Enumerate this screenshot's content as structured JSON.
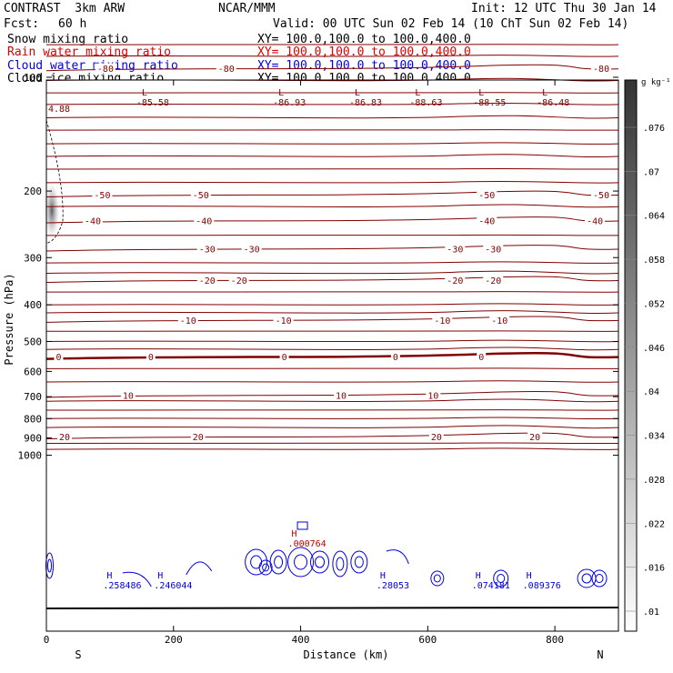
{
  "header": {
    "model": "CONTRAST  3km ARW",
    "center": "NCAR/MMM",
    "init": "Init: 12 UTC Thu 30 Jan 14",
    "fcst_label": "Fcst:",
    "fcst_value": "60 h",
    "valid": "Valid: 00 UTC Sun 02 Feb 14 (10 ChT Sun 02 Feb 14)"
  },
  "fields": [
    {
      "name": "Snow mixing ratio",
      "xy": "XY= 100.0,100.0 to 100.0,400.0",
      "color": "#000000"
    },
    {
      "name": "Rain water mixing ratio",
      "xy": "XY= 100.0,100.0 to 100.0,400.0",
      "color": "#e00000"
    },
    {
      "name": "Cloud water mixing ratio",
      "xy": "XY= 100.0,100.0 to 100.0,400.0",
      "color": "#0000e0"
    },
    {
      "name": "Cloud ice mixing ratio",
      "xy": "XY= 100.0,100.0 to 100.0,400.0",
      "color": "#000000"
    }
  ],
  "colorbar": {
    "unit": "g kg⁻¹",
    "labels": [
      ".076",
      ".07",
      ".064",
      ".058",
      ".052",
      ".046",
      ".04",
      ".034",
      ".028",
      ".022",
      ".016",
      ".01"
    ]
  },
  "chart_data": {
    "type": "contour",
    "xlabel": "Distance (km)",
    "ylabel": "Pressure (hPa)",
    "xlim": [
      0,
      900
    ],
    "ylim": [
      1050,
      50
    ],
    "y_scale": "log",
    "xticks": [
      "0",
      "200",
      "400",
      "600",
      "800"
    ],
    "yticks": [
      "100",
      "200",
      "300",
      "400",
      "500",
      "600",
      "700",
      "800",
      "900",
      "1000"
    ],
    "x_end_labels": {
      "left": "S",
      "right": "N"
    },
    "temperature_contours": [
      {
        "level": -80,
        "p": 95,
        "labels": [
          {
            "x": 80,
            "text": "-80"
          },
          {
            "x": 270,
            "text": "-80"
          },
          {
            "x": 860,
            "text": "-80"
          }
        ]
      },
      {
        "level": -50,
        "p": 205,
        "labels": [
          {
            "x": 75,
            "text": "-50"
          },
          {
            "x": 230,
            "text": "-50"
          },
          {
            "x": 680,
            "text": "-50"
          },
          {
            "x": 860,
            "text": "-50"
          }
        ]
      },
      {
        "level": -40,
        "p": 240,
        "labels": [
          {
            "x": 60,
            "text": "-40"
          },
          {
            "x": 235,
            "text": "-40"
          },
          {
            "x": 680,
            "text": "-40"
          },
          {
            "x": 850,
            "text": "-40"
          }
        ]
      },
      {
        "level": -30,
        "p": 285,
        "labels": [
          {
            "x": 240,
            "text": "-30"
          },
          {
            "x": 310,
            "text": "-30"
          },
          {
            "x": 630,
            "text": "-30"
          },
          {
            "x": 690,
            "text": "-30"
          }
        ]
      },
      {
        "level": -20,
        "p": 345,
        "labels": [
          {
            "x": 240,
            "text": "-20"
          },
          {
            "x": 290,
            "text": "-20"
          },
          {
            "x": 630,
            "text": "-20"
          },
          {
            "x": 690,
            "text": "-20"
          }
        ]
      },
      {
        "level": -10,
        "p": 440,
        "labels": [
          {
            "x": 210,
            "text": "-10"
          },
          {
            "x": 360,
            "text": "-10"
          },
          {
            "x": 610,
            "text": "-10"
          },
          {
            "x": 700,
            "text": "-10"
          }
        ]
      },
      {
        "level": 0,
        "p": 550,
        "bold": true,
        "labels": [
          {
            "x": 15,
            "text": "0"
          },
          {
            "x": 160,
            "text": "0"
          },
          {
            "x": 370,
            "text": "0"
          },
          {
            "x": 545,
            "text": "0"
          },
          {
            "x": 680,
            "text": "0"
          }
        ]
      },
      {
        "level": 10,
        "p": 695,
        "labels": [
          {
            "x": 120,
            "text": "10"
          },
          {
            "x": 455,
            "text": "10"
          },
          {
            "x": 600,
            "text": "10"
          }
        ]
      },
      {
        "level": 20,
        "p": 895,
        "labels": [
          {
            "x": 20,
            "text": "20"
          },
          {
            "x": 230,
            "text": "20"
          },
          {
            "x": 605,
            "text": "20"
          },
          {
            "x": 760,
            "text": "20"
          }
        ]
      }
    ],
    "lows": [
      {
        "x": 150,
        "text": "-85.58"
      },
      {
        "x": 365,
        "text": "-86.93"
      },
      {
        "x": 485,
        "text": "-86.83"
      },
      {
        "x": 580,
        "text": "-88.63"
      },
      {
        "x": 680,
        "text": "-88.55"
      },
      {
        "x": 780,
        "text": "-86.48"
      }
    ],
    "top_left_value": "4.88",
    "cloud_water_highs": [
      {
        "x": 95,
        "text": ".258486"
      },
      {
        "x": 175,
        "text": ".246044"
      },
      {
        "x": 525,
        "text": ".28053"
      },
      {
        "x": 675,
        "text": ".074181"
      },
      {
        "x": 755,
        "text": ".089376"
      }
    ],
    "rain_water_highs": [
      {
        "x": 400,
        "text": ".000764"
      }
    ]
  }
}
